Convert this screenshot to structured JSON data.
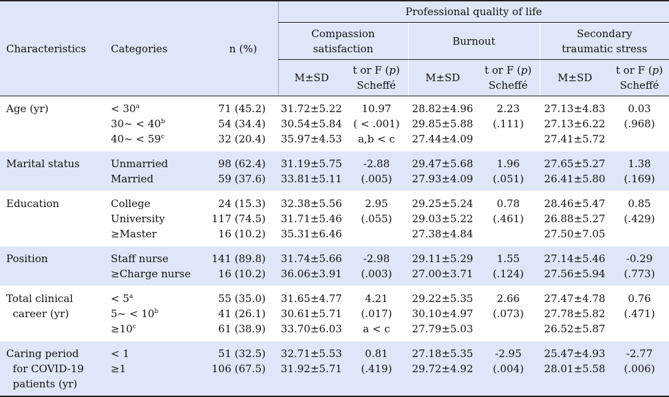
{
  "header": {
    "characteristics": "Characteristics",
    "categories": "Categories",
    "n": "n (%)",
    "group": "Professional quality of life",
    "subscales": [
      "Compassion satisfaction",
      "Burnout",
      "Secondary traumatic stress"
    ],
    "msd": "M±SD",
    "tf_line1": "t or F (p)",
    "tf_line2": "Scheffé"
  },
  "rows": [
    {
      "characteristic": [
        "Age (yr)"
      ],
      "categories": [
        {
          "text": "< 30",
          "sup": "a"
        },
        {
          "text": "30~ < 40",
          "sup": "b"
        },
        {
          "text": "40~ < 59",
          "sup": "c"
        }
      ],
      "n": [
        "71 (45.2)",
        "54 (34.4)",
        "32 (20.4)"
      ],
      "cs_msd": [
        "31.72±5.22",
        "30.54±5.84",
        "35.97±4.53"
      ],
      "cs_t": [
        "10.97",
        "( < .001)",
        "a,b < c"
      ],
      "bo_msd": [
        "28.82±4.96",
        "29.85±5.88",
        "27.44±4.09"
      ],
      "bo_t": [
        "2.23",
        "(.111)"
      ],
      "sts_msd": [
        "27.13±4.83",
        "27.13±6.22",
        "27.41±5.72"
      ],
      "sts_t": [
        "0.03",
        "(.968)"
      ],
      "shade": false
    },
    {
      "characteristic": [
        "Marital status"
      ],
      "categories": [
        {
          "text": "Unmarried",
          "sup": ""
        },
        {
          "text": "Married",
          "sup": ""
        }
      ],
      "n": [
        "98 (62.4)",
        "59 (37.6)"
      ],
      "cs_msd": [
        "31.19±5.75",
        "33.81±5.11"
      ],
      "cs_t": [
        "-2.88",
        "(.005)"
      ],
      "bo_msd": [
        "29.47±5.68",
        "27.93±4.09"
      ],
      "bo_t": [
        "1.96",
        "(.051)"
      ],
      "sts_msd": [
        "27.65±5.27",
        "26.41±5.80"
      ],
      "sts_t": [
        "1.38",
        "(.169)"
      ],
      "shade": true
    },
    {
      "characteristic": [
        "Education"
      ],
      "categories": [
        {
          "text": "College",
          "sup": ""
        },
        {
          "text": "University",
          "sup": ""
        },
        {
          "text": "≥Master",
          "sup": ""
        }
      ],
      "n": [
        "24 (15.3)",
        "117 (74.5)",
        "16 (10.2)"
      ],
      "cs_msd": [
        "32.38±5.56",
        "31.71±5.46",
        "35.31±6.46"
      ],
      "cs_t": [
        "2.95",
        "(.055)"
      ],
      "bo_msd": [
        "29.25±5.24",
        "29.03±5.22",
        "27.38±4.84"
      ],
      "bo_t": [
        "0.78",
        "(.461)"
      ],
      "sts_msd": [
        "28.46±5.47",
        "26.88±5.27",
        "27.50±7.05"
      ],
      "sts_t": [
        "0.85",
        "(.429)"
      ],
      "shade": false
    },
    {
      "characteristic": [
        "Position"
      ],
      "categories": [
        {
          "text": "Staff nurse",
          "sup": ""
        },
        {
          "text": "≥Charge nurse",
          "sup": ""
        }
      ],
      "n": [
        "141 (89.8)",
        "16 (10.2)"
      ],
      "cs_msd": [
        "31.74±5.66",
        "36.06±3.91"
      ],
      "cs_t": [
        "-2.98",
        "(.003)"
      ],
      "bo_msd": [
        "29.11±5.29",
        "27.00±3.71"
      ],
      "bo_t": [
        "1.55",
        "(.124)"
      ],
      "sts_msd": [
        "27.14±5.46",
        "27.56±5.94"
      ],
      "sts_t": [
        "-0.29",
        "(.773)"
      ],
      "shade": true
    },
    {
      "characteristic": [
        "Total clinical",
        "  career (yr)"
      ],
      "categories": [
        {
          "text": "< 5",
          "sup": "a"
        },
        {
          "text": "5~ < 10",
          "sup": "b"
        },
        {
          "text": "≥10",
          "sup": "c"
        }
      ],
      "n": [
        "55 (35.0)",
        "41 (26.1)",
        "61 (38.9)"
      ],
      "cs_msd": [
        "31.65±4.77",
        "30.61±5.71",
        "33.70±6.03"
      ],
      "cs_t": [
        "4.21",
        "(.017)",
        "a < c"
      ],
      "bo_msd": [
        "29.22±5.35",
        "30.10±4.97",
        "27.79±5.03"
      ],
      "bo_t": [
        "2.66",
        "(.073)"
      ],
      "sts_msd": [
        "27.47±4.78",
        "27.78±5.82",
        "26.52±5.87"
      ],
      "sts_t": [
        "0.76",
        "(.471)"
      ],
      "shade": false
    },
    {
      "characteristic": [
        "Caring period",
        "  for COVID-19",
        "  patients (yr)"
      ],
      "categories": [
        {
          "text": "< 1",
          "sup": ""
        },
        {
          "text": "≥1",
          "sup": ""
        }
      ],
      "n": [
        "51 (32.5)",
        "106 (67.5)"
      ],
      "cs_msd": [
        "32.71±5.53",
        "31.92±5.71"
      ],
      "cs_t": [
        "0.81",
        "(.419)"
      ],
      "bo_msd": [
        "27.18±5.35",
        "29.72±4.92"
      ],
      "bo_t": [
        "-2.95",
        "(.004)"
      ],
      "sts_msd": [
        "25.47±4.93",
        "28.01±5.58"
      ],
      "sts_t": [
        "-2.77",
        "(.006)"
      ],
      "shade": true
    }
  ]
}
